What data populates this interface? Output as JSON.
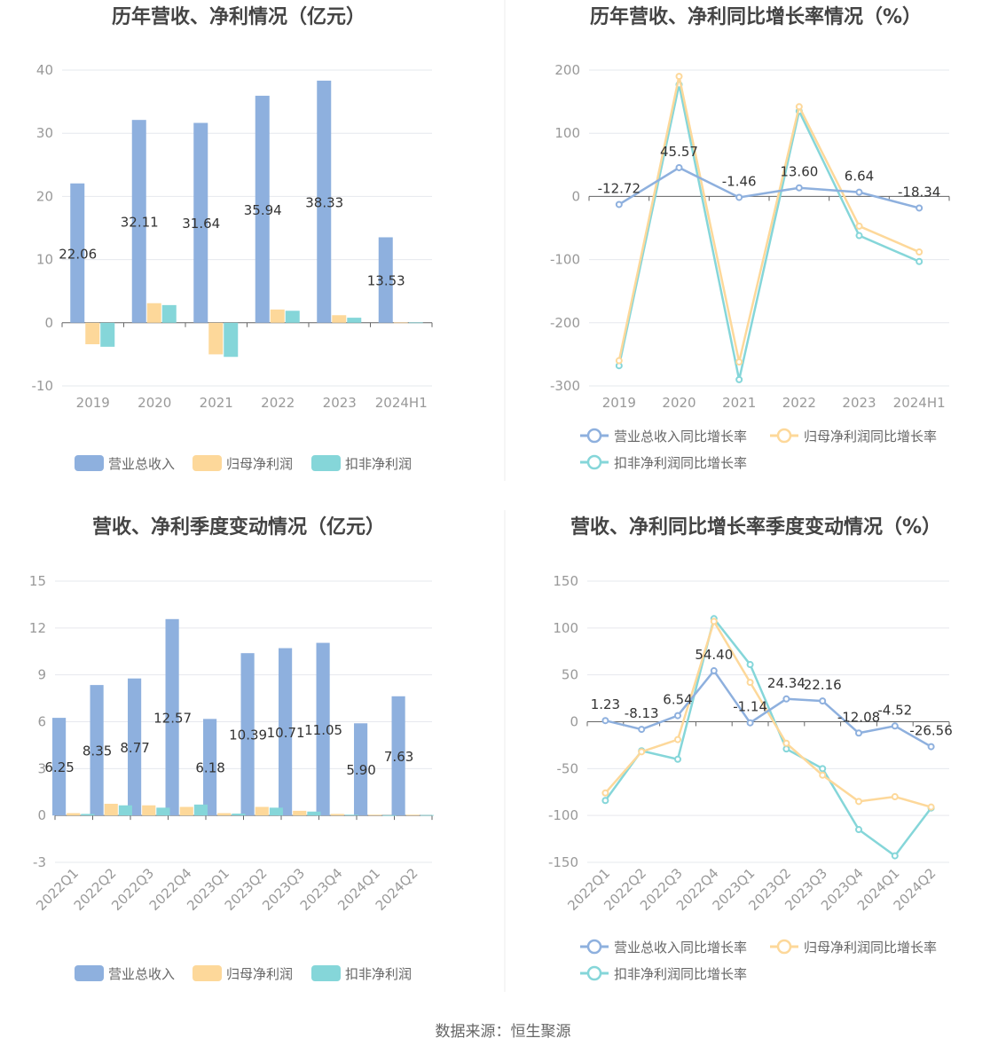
{
  "source": "数据来源：恒生聚源",
  "chart_data": [
    {
      "type": "bar",
      "title": "历年营收、净利情况（亿元）",
      "categories": [
        "2019",
        "2020",
        "2021",
        "2022",
        "2023",
        "2024H1"
      ],
      "ylim": [
        -10,
        40
      ],
      "yticks": [
        -10,
        0,
        10,
        20,
        30,
        40
      ],
      "grid": true,
      "legend_position": "bottom",
      "series": [
        {
          "name": "营业总收入",
          "color": "#8eb0de",
          "values": [
            22.06,
            32.11,
            31.64,
            35.94,
            38.33,
            13.53
          ],
          "labels": [
            "22.06",
            "32.11",
            "31.64",
            "35.94",
            "38.33",
            "13.53"
          ]
        },
        {
          "name": "归母净利润",
          "color": "#fdd89a",
          "values": [
            -3.4,
            3.1,
            -5.0,
            2.1,
            1.2,
            0.05
          ]
        },
        {
          "name": "扣非净利润",
          "color": "#85d6d9",
          "values": [
            -3.8,
            2.8,
            -5.4,
            1.9,
            0.8,
            0.05
          ]
        }
      ]
    },
    {
      "type": "line",
      "title": "历年营收、净利同比增长率情况（%）",
      "categories": [
        "2019",
        "2020",
        "2021",
        "2022",
        "2023",
        "2024H1"
      ],
      "ylim": [
        -300,
        200
      ],
      "yticks": [
        -300,
        -200,
        -100,
        0,
        100,
        200
      ],
      "grid": true,
      "legend_position": "bottom",
      "series": [
        {
          "name": "营业总收入同比增长率",
          "color": "#8eb0de",
          "values": [
            -12.72,
            45.57,
            -1.46,
            13.6,
            6.64,
            -18.34
          ],
          "labels": [
            "-12.72",
            "45.57",
            "-1.46",
            "13.60",
            "6.64",
            "-18.34"
          ]
        },
        {
          "name": "归母净利润同比增长率",
          "color": "#fdd89a",
          "values": [
            -260,
            190,
            -262,
            142,
            -47,
            -88
          ]
        },
        {
          "name": "扣非净利润同比增长率",
          "color": "#85d6d9",
          "values": [
            -268,
            177,
            -290,
            135,
            -62,
            -103
          ]
        }
      ]
    },
    {
      "type": "bar",
      "title": "营收、净利季度变动情况（亿元）",
      "categories": [
        "2022Q1",
        "2022Q2",
        "2022Q3",
        "2022Q4",
        "2023Q1",
        "2023Q2",
        "2023Q3",
        "2023Q4",
        "2024Q1",
        "2024Q2"
      ],
      "ylim": [
        -3,
        15
      ],
      "yticks": [
        -3,
        0,
        3,
        6,
        9,
        12,
        15
      ],
      "grid": true,
      "legend_position": "bottom",
      "series": [
        {
          "name": "营业总收入",
          "color": "#8eb0de",
          "values": [
            6.25,
            8.35,
            8.77,
            12.57,
            6.18,
            10.39,
            10.71,
            11.05,
            5.9,
            7.63
          ],
          "labels": [
            "6.25",
            "8.35",
            "8.77",
            "12.57",
            "6.18",
            "10.39",
            "10.71",
            "11.05",
            "5.90",
            "7.63"
          ]
        },
        {
          "name": "归母净利润",
          "color": "#fdd89a",
          "values": [
            0.15,
            0.75,
            0.65,
            0.55,
            0.15,
            0.55,
            0.3,
            0.1,
            0.05,
            0.05
          ]
        },
        {
          "name": "扣非净利润",
          "color": "#85d6d9",
          "values": [
            0.1,
            0.65,
            0.5,
            0.7,
            0.12,
            0.5,
            0.25,
            0.05,
            0.02,
            0.03
          ]
        }
      ]
    },
    {
      "type": "line",
      "title": "营收、净利同比增长率季度变动情况（%）",
      "categories": [
        "2022Q1",
        "2022Q2",
        "2022Q3",
        "2022Q4",
        "2023Q1",
        "2023Q2",
        "2023Q3",
        "2023Q4",
        "2024Q1",
        "2024Q2"
      ],
      "ylim": [
        -150,
        150
      ],
      "yticks": [
        -150,
        -100,
        -50,
        0,
        50,
        100,
        150
      ],
      "grid": true,
      "legend_position": "bottom",
      "series": [
        {
          "name": "营业总收入同比增长率",
          "color": "#8eb0de",
          "values": [
            1.23,
            -8.13,
            6.54,
            54.4,
            -1.14,
            24.34,
            22.16,
            -12.08,
            -4.52,
            -26.56
          ],
          "labels": [
            "1.23",
            "-8.13",
            "6.54",
            "54.40",
            "-1.14",
            "24.34",
            "22.16",
            "-12.08",
            "-4.52",
            "-26.56"
          ]
        },
        {
          "name": "归母净利润同比增长率",
          "color": "#fdd89a",
          "values": [
            -76,
            -32,
            -19,
            107,
            42,
            -23,
            -57,
            -85,
            -80,
            -91
          ]
        },
        {
          "name": "扣非净利润同比增长率",
          "color": "#85d6d9",
          "values": [
            -84,
            -31,
            -40,
            110,
            61,
            -29,
            -50,
            -115,
            -143,
            -92
          ]
        }
      ]
    }
  ]
}
